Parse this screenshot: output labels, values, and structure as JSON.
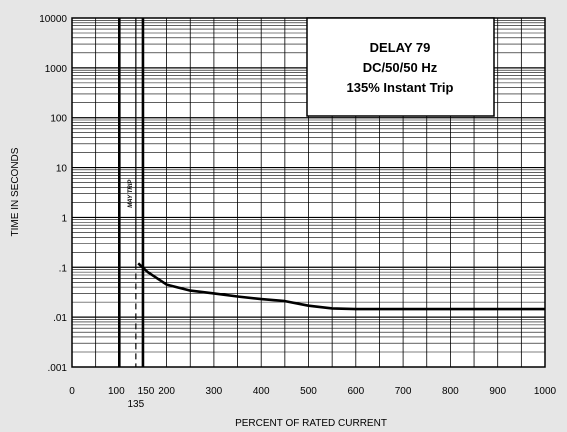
{
  "chart_data": {
    "type": "line",
    "title_lines": [
      "DELAY 79",
      "DC/50/50 Hz",
      "135% Instant Trip"
    ],
    "xlabel": "PERCENT OF RATED CURRENT",
    "ylabel": "TIME IN SECONDS",
    "x_axis": {
      "scale": "linear",
      "range": [
        0,
        1000
      ],
      "ticks": [
        0,
        100,
        150,
        200,
        300,
        400,
        500,
        600,
        700,
        800,
        900,
        1000
      ],
      "tick_labels": [
        "0",
        "100",
        "150",
        "200",
        "300",
        "400",
        "500",
        "600",
        "700",
        "800",
        "900",
        "1000"
      ],
      "extra_label": {
        "value": 135,
        "text": "135"
      }
    },
    "y_axis": {
      "scale": "log",
      "range": [
        0.001,
        10000
      ],
      "ticks": [
        0.001,
        0.01,
        0.1,
        1,
        10,
        100,
        1000,
        10000
      ],
      "tick_labels": [
        ".001",
        ".01",
        ".1",
        "1",
        "10",
        "100",
        "1000",
        "10000"
      ]
    },
    "grid": true,
    "vertical_lines": [
      100,
      135,
      150
    ],
    "band_label": "MAY TRIP",
    "instant_trip_x": 135,
    "series": [
      {
        "x": [
          140,
          160,
          200,
          250,
          300,
          350,
          400,
          450,
          500,
          550,
          600,
          700,
          800,
          900,
          1000
        ],
        "values": [
          0.12,
          0.08,
          0.045,
          0.034,
          0.03,
          0.026,
          0.023,
          0.021,
          0.017,
          0.015,
          0.0145,
          0.0145,
          0.0145,
          0.0145,
          0.0145
        ]
      }
    ]
  }
}
